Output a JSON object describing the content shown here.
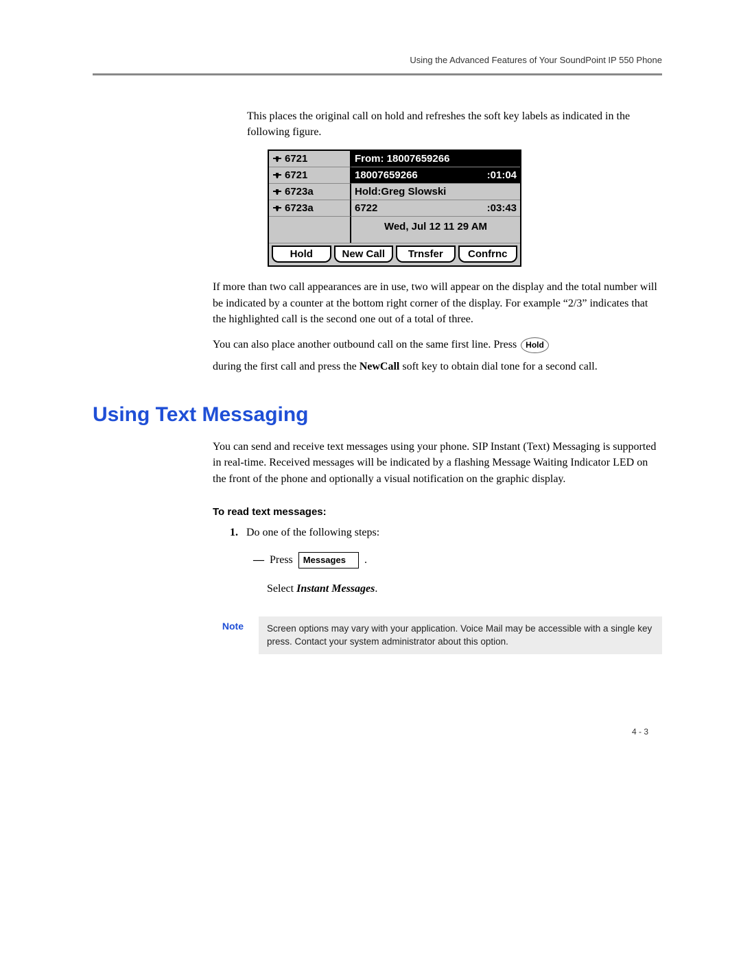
{
  "header": {
    "title": "Using the Advanced Features of Your SoundPoint IP 550 Phone"
  },
  "intro_para": "This places the original call on hold and refreshes the soft key labels as indicated in the following figure.",
  "phone": {
    "lines": [
      {
        "ext": "6721",
        "right_text": "From: 18007659266",
        "right_style": "black",
        "timer": ""
      },
      {
        "ext": "6721",
        "right_text": "18007659266",
        "right_style": "black",
        "timer": ":01:04"
      },
      {
        "ext": "6723a",
        "right_text": "Hold:Greg Slowski",
        "right_style": "gray",
        "timer": ""
      },
      {
        "ext": "6723a",
        "right_text": "6722",
        "right_style": "gray",
        "timer": ":03:43"
      }
    ],
    "datetime": "Wed, Jul 12  11 29 AM",
    "softkeys": [
      "Hold",
      "New Call",
      "Trnsfer",
      "Confrnc"
    ]
  },
  "para_after_fig": "If more than two call appearances are in use, two will appear on the display and the total number will be indicated by a counter at the bottom right corner of the display. For example “2/3” indicates that the highlighted call is the second one out of a total of three.",
  "para_hold_1": "You can also place another outbound call on the same first line. Press ",
  "hold_btn_label": "Hold",
  "para_hold_2_a": "during the first call and press the ",
  "para_hold_2_b_bold": "NewCall",
  "para_hold_2_c": " soft key to obtain dial tone for a second call.",
  "section_heading": "Using Text Messaging",
  "section_para": "You can send and receive text messages using your phone. SIP Instant (Text) Messaging is supported in real-time. Received messages will be indicated by a flashing Message Waiting Indicator LED on the front of the phone and optionally a visual notification on the graphic display.",
  "read_heading": "To read text messages:",
  "step1_num": "1.",
  "step1_text": "Do one of the following steps:",
  "press_word": "Press",
  "messages_btn": "Messages",
  "select_line_a": "Select ",
  "select_line_b_bold": "Instant Messages",
  "select_line_c": ".",
  "note_label": "Note",
  "note_text": "Screen options may vary with your application. Voice Mail may be accessible with a single key press. Contact your system administrator about this option.",
  "page_number": "4 - 3",
  "colors": {
    "heading_blue": "#1f4fd6",
    "rule_gray": "#888888",
    "note_bg": "#ececec",
    "phone_bg": "#c8c8c8"
  }
}
